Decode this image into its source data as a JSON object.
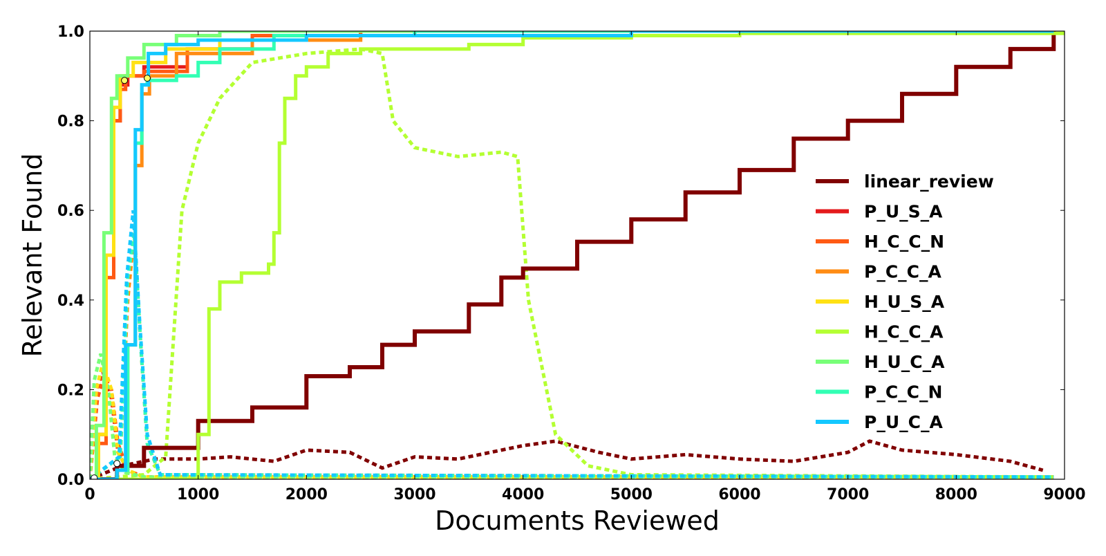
{
  "chart_data": {
    "type": "line",
    "title": "",
    "xlabel": "Documents Reviewed",
    "ylabel": "Relevant Found",
    "xlim": [
      0,
      9000
    ],
    "ylim": [
      0,
      1.0
    ],
    "xticks": [
      "0",
      "1000",
      "2000",
      "3000",
      "4000",
      "5000",
      "6000",
      "7000",
      "8000",
      "9000"
    ],
    "yticks": [
      "0.0",
      "0.2",
      "0.4",
      "0.6",
      "0.8",
      "1.0"
    ],
    "grid": false,
    "legend_position": "center-right",
    "series": [
      {
        "name": "linear_review",
        "color": "#800000",
        "x": [
          0,
          250,
          500,
          1000,
          1500,
          2000,
          2400,
          2700,
          3000,
          3500,
          3800,
          4000,
          4500,
          5000,
          5500,
          6000,
          6500,
          7000,
          7500,
          8000,
          8500,
          8900
        ],
        "y": [
          0.0,
          0.03,
          0.07,
          0.13,
          0.16,
          0.23,
          0.25,
          0.3,
          0.33,
          0.39,
          0.45,
          0.47,
          0.53,
          0.58,
          0.64,
          0.69,
          0.76,
          0.8,
          0.86,
          0.92,
          0.96,
          1.0
        ],
        "rate_x": [
          0,
          300,
          600,
          1000,
          1300,
          1700,
          2000,
          2400,
          2700,
          3000,
          3400,
          3700,
          4000,
          4300,
          4700,
          5000,
          5500,
          6000,
          6500,
          7000,
          7200,
          7500,
          8000,
          8500,
          8800
        ],
        "rate_y": [
          0.0,
          0.03,
          0.045,
          0.045,
          0.05,
          0.04,
          0.065,
          0.06,
          0.025,
          0.05,
          0.045,
          0.06,
          0.075,
          0.085,
          0.06,
          0.045,
          0.055,
          0.045,
          0.04,
          0.06,
          0.085,
          0.065,
          0.055,
          0.04,
          0.02
        ]
      },
      {
        "name": "P_U_S_A",
        "color": "#e41a1c",
        "x": [
          0,
          80,
          150,
          220,
          280,
          350,
          500,
          900,
          1500,
          2500,
          5000,
          8900
        ],
        "y": [
          0.0,
          0.1,
          0.5,
          0.8,
          0.88,
          0.9,
          0.92,
          0.96,
          0.99,
          1.0,
          1.0,
          1.0
        ],
        "rate_x": [
          0,
          60,
          120,
          200,
          260,
          350,
          500,
          8900
        ],
        "rate_y": [
          0.0,
          0.2,
          0.24,
          0.18,
          0.06,
          0.02,
          0.005,
          0.005
        ]
      },
      {
        "name": "H_C_C_N",
        "color": "#ff5a14",
        "x": [
          0,
          80,
          150,
          220,
          280,
          330,
          500,
          900,
          1500,
          2500,
          5000,
          8900
        ],
        "y": [
          0.0,
          0.08,
          0.45,
          0.8,
          0.87,
          0.9,
          0.91,
          0.96,
          0.99,
          1.0,
          1.0,
          1.0
        ],
        "rate_x": [
          0,
          70,
          130,
          200,
          260,
          350,
          500,
          8900
        ],
        "rate_y": [
          0.0,
          0.18,
          0.23,
          0.2,
          0.08,
          0.02,
          0.005,
          0.005
        ]
      },
      {
        "name": "P_C_C_A",
        "color": "#ff8c14",
        "x": [
          0,
          250,
          350,
          420,
          480,
          550,
          800,
          1500,
          2500,
          5000,
          8900
        ],
        "y": [
          0.0,
          0.02,
          0.3,
          0.7,
          0.86,
          0.9,
          0.95,
          0.98,
          0.99,
          1.0,
          1.0
        ],
        "rate_x": [
          0,
          280,
          350,
          410,
          470,
          530,
          650,
          8900
        ],
        "rate_y": [
          0.0,
          0.05,
          0.4,
          0.55,
          0.3,
          0.08,
          0.01,
          0.005
        ]
      },
      {
        "name": "H_U_S_A",
        "color": "#ffe114",
        "x": [
          0,
          80,
          150,
          220,
          280,
          400,
          700,
          1200,
          2000,
          5000,
          8900
        ],
        "y": [
          0.0,
          0.1,
          0.5,
          0.83,
          0.9,
          0.93,
          0.96,
          0.98,
          0.99,
          1.0,
          1.0
        ],
        "rate_x": [
          0,
          60,
          120,
          200,
          260,
          350,
          500,
          8900
        ],
        "rate_y": [
          0.0,
          0.2,
          0.26,
          0.2,
          0.06,
          0.02,
          0.005,
          0.005
        ]
      },
      {
        "name": "H_C_C_A",
        "color": "#b4ff32",
        "x": [
          0,
          900,
          1000,
          1100,
          1200,
          1400,
          1650,
          1700,
          1750,
          1800,
          1900,
          2000,
          2200,
          2500,
          2700,
          3500,
          4000,
          5000,
          6000,
          9000
        ],
        "y": [
          0.0,
          0.0,
          0.1,
          0.38,
          0.44,
          0.46,
          0.48,
          0.55,
          0.75,
          0.85,
          0.9,
          0.92,
          0.95,
          0.96,
          0.96,
          0.97,
          0.985,
          0.99,
          0.995,
          1.0
        ],
        "rate_x": [
          0,
          500,
          700,
          850,
          1000,
          1200,
          1500,
          2000,
          2500,
          2700,
          2800,
          3000,
          3400,
          3800,
          3950,
          4050,
          4300,
          4600,
          5000,
          8900
        ],
        "rate_y": [
          0.0,
          0.01,
          0.05,
          0.6,
          0.75,
          0.85,
          0.93,
          0.95,
          0.96,
          0.95,
          0.8,
          0.74,
          0.72,
          0.73,
          0.72,
          0.4,
          0.1,
          0.03,
          0.01,
          0.005
        ]
      },
      {
        "name": "H_U_C_A",
        "color": "#78ff78",
        "x": [
          0,
          60,
          130,
          200,
          250,
          350,
          500,
          800,
          1200,
          2000,
          5000,
          8900
        ],
        "y": [
          0.0,
          0.12,
          0.55,
          0.85,
          0.9,
          0.94,
          0.97,
          0.99,
          1.0,
          1.0,
          1.0,
          1.0
        ],
        "rate_x": [
          0,
          40,
          100,
          170,
          230,
          330,
          500,
          8900
        ],
        "rate_y": [
          0.0,
          0.22,
          0.28,
          0.2,
          0.05,
          0.015,
          0.005,
          0.005
        ]
      },
      {
        "name": "P_C_C_N",
        "color": "#32ffb4",
        "x": [
          0,
          250,
          350,
          420,
          480,
          530,
          800,
          1000,
          1200,
          1700,
          3000,
          8900
        ],
        "y": [
          0.0,
          0.02,
          0.3,
          0.75,
          0.88,
          0.89,
          0.9,
          0.93,
          0.96,
          0.99,
          1.0,
          1.0
        ],
        "rate_x": [
          0,
          280,
          350,
          410,
          470,
          530,
          650,
          8900
        ],
        "rate_y": [
          0.0,
          0.05,
          0.45,
          0.55,
          0.3,
          0.08,
          0.01,
          0.005
        ]
      },
      {
        "name": "P_U_C_A",
        "color": "#14c8ff",
        "x": [
          0,
          250,
          330,
          420,
          480,
          540,
          700,
          1000,
          2000,
          5000,
          8900
        ],
        "y": [
          0.0,
          0.02,
          0.3,
          0.78,
          0.88,
          0.95,
          0.97,
          0.98,
          0.99,
          1.0,
          1.0
        ],
        "rate_x": [
          0,
          270,
          340,
          400,
          460,
          530,
          650,
          8900
        ],
        "rate_y": [
          0.0,
          0.05,
          0.45,
          0.6,
          0.35,
          0.1,
          0.01,
          0.005
        ]
      }
    ],
    "markers": [
      {
        "x": 320,
        "y": 0.89,
        "fill": "#ffff66"
      },
      {
        "x": 530,
        "y": 0.895,
        "fill": "#ffff66"
      },
      {
        "x": 250,
        "y": 0.035,
        "fill": "#ffffff"
      },
      {
        "x": 40,
        "y": 0.003,
        "fill": "#ffffff"
      }
    ]
  }
}
